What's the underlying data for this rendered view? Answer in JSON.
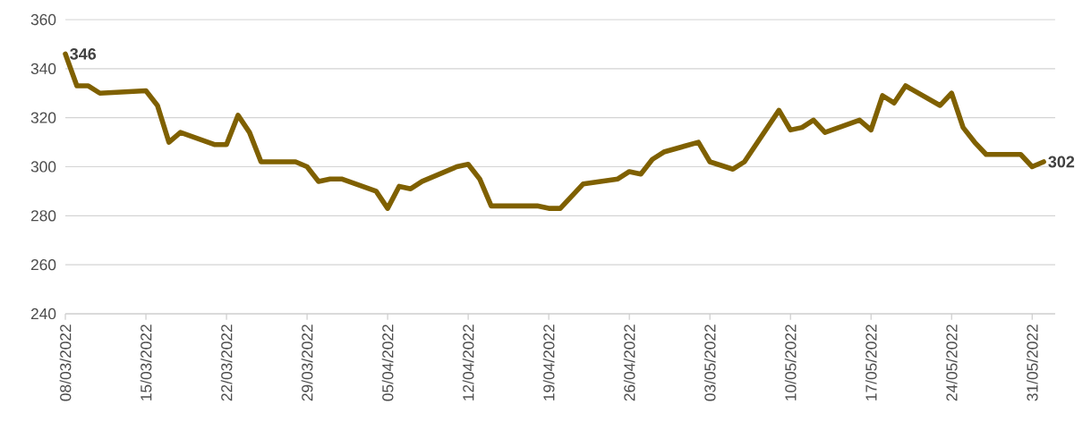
{
  "chart_data": {
    "type": "line",
    "x": [
      "2022-03-08",
      "2022-03-09",
      "2022-03-10",
      "2022-03-11",
      "2022-03-15",
      "2022-03-16",
      "2022-03-17",
      "2022-03-18",
      "2022-03-21",
      "2022-03-22",
      "2022-03-23",
      "2022-03-24",
      "2022-03-25",
      "2022-03-28",
      "2022-03-29",
      "2022-03-30",
      "2022-03-31",
      "2022-04-01",
      "2022-04-04",
      "2022-04-05",
      "2022-04-06",
      "2022-04-07",
      "2022-04-08",
      "2022-04-11",
      "2022-04-12",
      "2022-04-13",
      "2022-04-14",
      "2022-04-18",
      "2022-04-19",
      "2022-04-20",
      "2022-04-21",
      "2022-04-22",
      "2022-04-25",
      "2022-04-26",
      "2022-04-27",
      "2022-04-28",
      "2022-04-29",
      "2022-05-02",
      "2022-05-03",
      "2022-05-05",
      "2022-05-06",
      "2022-05-09",
      "2022-05-10",
      "2022-05-11",
      "2022-05-12",
      "2022-05-13",
      "2022-05-16",
      "2022-05-17",
      "2022-05-18",
      "2022-05-19",
      "2022-05-20",
      "2022-05-23",
      "2022-05-24",
      "2022-05-25",
      "2022-05-26",
      "2022-05-27",
      "2022-05-30",
      "2022-05-31",
      "2022-06-01"
    ],
    "series": [
      {
        "color": "#7f6000",
        "values": [
          346,
          333,
          333,
          330,
          331,
          325,
          310,
          314,
          309,
          309,
          321,
          314,
          302,
          302,
          300,
          294,
          295,
          295,
          290,
          283,
          292,
          291,
          294,
          300,
          301,
          295,
          284,
          284,
          283,
          283,
          288,
          293,
          295,
          298,
          297,
          303,
          306,
          310,
          302,
          299,
          302,
          323,
          315,
          316,
          319,
          314,
          319,
          315,
          329,
          326,
          333,
          325,
          330,
          316,
          310,
          305,
          305,
          300,
          302
        ],
        "value_labels": [
          "346",
          null,
          null,
          null,
          null,
          null,
          null,
          null,
          null,
          null,
          null,
          null,
          null,
          null,
          null,
          null,
          null,
          null,
          null,
          null,
          null,
          null,
          null,
          null,
          null,
          null,
          null,
          null,
          null,
          null,
          null,
          null,
          null,
          null,
          null,
          null,
          null,
          null,
          null,
          null,
          null,
          null,
          null,
          null,
          null,
          null,
          null,
          null,
          null,
          null,
          null,
          null,
          null,
          null,
          null,
          null,
          null,
          null,
          "302"
        ]
      }
    ],
    "xlim": [
      "2022-03-08",
      "2022-06-02"
    ],
    "xticks": [
      {
        "value": "2022-03-08",
        "label": "08/03/2022"
      },
      {
        "value": "2022-03-15",
        "label": "15/03/2022"
      },
      {
        "value": "2022-03-22",
        "label": "22/03/2022"
      },
      {
        "value": "2022-03-29",
        "label": "29/03/2022"
      },
      {
        "value": "2022-04-05",
        "label": "05/04/2022"
      },
      {
        "value": "2022-04-12",
        "label": "12/04/2022"
      },
      {
        "value": "2022-04-19",
        "label": "19/04/2022"
      },
      {
        "value": "2022-04-26",
        "label": "26/04/2022"
      },
      {
        "value": "2022-05-03",
        "label": "03/05/2022"
      },
      {
        "value": "2022-05-10",
        "label": "10/05/2022"
      },
      {
        "value": "2022-05-17",
        "label": "17/05/2022"
      },
      {
        "value": "2022-05-24",
        "label": "24/05/2022"
      },
      {
        "value": "2022-05-31",
        "label": "31/05/2022"
      }
    ],
    "ylim": [
      240,
      360
    ],
    "yticks": [
      240,
      260,
      280,
      300,
      320,
      340,
      360
    ],
    "grid": "y"
  }
}
